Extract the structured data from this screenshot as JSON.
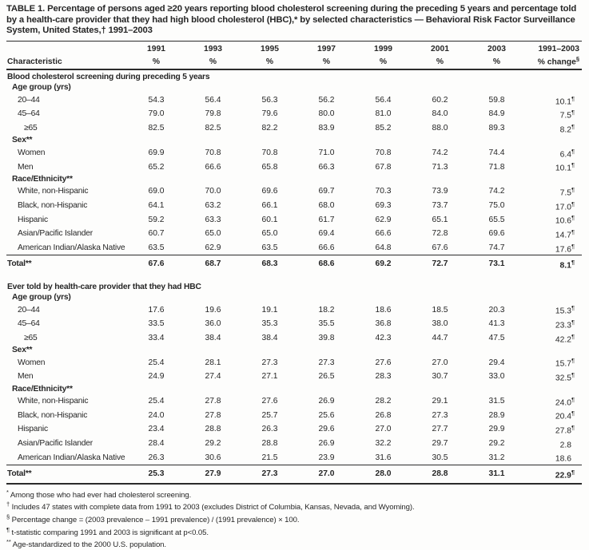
{
  "title": "TABLE 1. Percentage of persons aged ≥20 years reporting blood cholesterol screening during the preceding 5 years and percentage told by a health-care provider that they had high blood cholesterol (HBC),* by selected characteristics — Behavioral Risk Factor Surveillance System, United States,† 1991–2003",
  "header": {
    "characteristic_label": "Characteristic",
    "percent_label": "%",
    "year_columns": [
      "1991",
      "1993",
      "1995",
      "1997",
      "1999",
      "2001",
      "2003"
    ],
    "change_line1": "1991–2003",
    "change_line2": "% change",
    "change_marker": "§"
  },
  "table": {
    "sig_marker": "¶",
    "rows": [
      {
        "type": "section",
        "label": "Blood cholesterol screening during preceding 5 years"
      },
      {
        "type": "group",
        "label": "Age group (yrs)"
      },
      {
        "type": "data",
        "label": "20–44",
        "indent": 2,
        "values": [
          "54.3",
          "56.4",
          "56.3",
          "56.2",
          "56.4",
          "60.2",
          "59.8"
        ],
        "change": "10.1",
        "sig": true
      },
      {
        "type": "data",
        "label": "45–64",
        "indent": 2,
        "values": [
          "79.0",
          "79.8",
          "79.6",
          "80.0",
          "81.0",
          "84.0",
          "84.9"
        ],
        "change": "7.5",
        "sig": true
      },
      {
        "type": "data",
        "label": "≥65",
        "indent": 3,
        "values": [
          "82.5",
          "82.5",
          "82.2",
          "83.9",
          "85.2",
          "88.0",
          "89.3"
        ],
        "change": "8.2",
        "sig": true
      },
      {
        "type": "group",
        "label": "Sex**"
      },
      {
        "type": "data",
        "label": "Women",
        "indent": 2,
        "values": [
          "69.9",
          "70.8",
          "70.8",
          "71.0",
          "70.8",
          "74.2",
          "74.4"
        ],
        "change": "6.4",
        "sig": true
      },
      {
        "type": "data",
        "label": "Men",
        "indent": 2,
        "values": [
          "65.2",
          "66.6",
          "65.8",
          "66.3",
          "67.8",
          "71.3",
          "71.8"
        ],
        "change": "10.1",
        "sig": true
      },
      {
        "type": "group",
        "label": "Race/Ethnicity**"
      },
      {
        "type": "data",
        "label": "White, non-Hispanic",
        "indent": 2,
        "values": [
          "69.0",
          "70.0",
          "69.6",
          "69.7",
          "70.3",
          "73.9",
          "74.2"
        ],
        "change": "7.5",
        "sig": true
      },
      {
        "type": "data",
        "label": "Black, non-Hispanic",
        "indent": 2,
        "values": [
          "64.1",
          "63.2",
          "66.1",
          "68.0",
          "69.3",
          "73.7",
          "75.0"
        ],
        "change": "17.0",
        "sig": true
      },
      {
        "type": "data",
        "label": "Hispanic",
        "indent": 2,
        "values": [
          "59.2",
          "63.3",
          "60.1",
          "61.7",
          "62.9",
          "65.1",
          "65.5"
        ],
        "change": "10.6",
        "sig": true
      },
      {
        "type": "data",
        "label": "Asian/Pacific Islander",
        "indent": 2,
        "values": [
          "60.7",
          "65.0",
          "65.0",
          "69.4",
          "66.6",
          "72.8",
          "69.6"
        ],
        "change": "14.7",
        "sig": true
      },
      {
        "type": "data",
        "label": "American Indian/Alaska Native",
        "indent": 2,
        "values": [
          "63.5",
          "62.9",
          "63.5",
          "66.6",
          "64.8",
          "67.6",
          "74.7"
        ],
        "change": "17.6",
        "sig": true
      },
      {
        "type": "total",
        "label": "Total**",
        "indent": 0,
        "values": [
          "67.6",
          "68.7",
          "68.3",
          "68.6",
          "69.2",
          "72.7",
          "73.1"
        ],
        "change": "8.1",
        "sig": true
      },
      {
        "type": "section",
        "label": "Ever told by health-care provider that they had HBC"
      },
      {
        "type": "group",
        "label": "Age group (yrs)"
      },
      {
        "type": "data",
        "label": "20–44",
        "indent": 2,
        "values": [
          "17.6",
          "19.6",
          "19.1",
          "18.2",
          "18.6",
          "18.5",
          "20.3"
        ],
        "change": "15.3",
        "sig": true
      },
      {
        "type": "data",
        "label": "45–64",
        "indent": 2,
        "values": [
          "33.5",
          "36.0",
          "35.3",
          "35.5",
          "36.8",
          "38.0",
          "41.3"
        ],
        "change": "23.3",
        "sig": true
      },
      {
        "type": "data",
        "label": "≥65",
        "indent": 3,
        "values": [
          "33.4",
          "38.4",
          "38.4",
          "39.8",
          "42.3",
          "44.7",
          "47.5"
        ],
        "change": "42.2",
        "sig": true
      },
      {
        "type": "group",
        "label": "Sex**"
      },
      {
        "type": "data",
        "label": "Women",
        "indent": 2,
        "values": [
          "25.4",
          "28.1",
          "27.3",
          "27.3",
          "27.6",
          "27.0",
          "29.4"
        ],
        "change": "15.7",
        "sig": true
      },
      {
        "type": "data",
        "label": "Men",
        "indent": 2,
        "values": [
          "24.9",
          "27.4",
          "27.1",
          "26.5",
          "28.3",
          "30.7",
          "33.0"
        ],
        "change": "32.5",
        "sig": true
      },
      {
        "type": "group",
        "label": "Race/Ethnicity**"
      },
      {
        "type": "data",
        "label": "White, non-Hispanic",
        "indent": 2,
        "values": [
          "25.4",
          "27.8",
          "27.6",
          "26.9",
          "28.2",
          "29.1",
          "31.5"
        ],
        "change": "24.0",
        "sig": true
      },
      {
        "type": "data",
        "label": "Black, non-Hispanic",
        "indent": 2,
        "values": [
          "24.0",
          "27.8",
          "25.7",
          "25.6",
          "26.8",
          "27.3",
          "28.9"
        ],
        "change": "20.4",
        "sig": true
      },
      {
        "type": "data",
        "label": "Hispanic",
        "indent": 2,
        "values": [
          "23.4",
          "28.8",
          "26.3",
          "29.6",
          "27.0",
          "27.7",
          "29.9"
        ],
        "change": "27.8",
        "sig": true
      },
      {
        "type": "data",
        "label": "Asian/Pacific Islander",
        "indent": 2,
        "values": [
          "28.4",
          "29.2",
          "28.8",
          "26.9",
          "32.2",
          "29.7",
          "29.2"
        ],
        "change": "2.8",
        "sig": false
      },
      {
        "type": "data",
        "label": "American Indian/Alaska Native",
        "indent": 2,
        "values": [
          "26.3",
          "30.6",
          "21.5",
          "23.9",
          "31.6",
          "30.5",
          "31.2"
        ],
        "change": "18.6",
        "sig": false
      },
      {
        "type": "total",
        "label": "Total**",
        "indent": 0,
        "values": [
          "25.3",
          "27.9",
          "27.3",
          "27.0",
          "28.0",
          "28.8",
          "31.1"
        ],
        "change": "22.9",
        "sig": true
      }
    ]
  },
  "footnotes": [
    {
      "marker": "*",
      "text": "Among those who had ever had cholesterol screening."
    },
    {
      "marker": "†",
      "text": "Includes 47 states with complete data from 1991 to 2003 (excludes District of Columbia, Kansas, Nevada, and Wyoming)."
    },
    {
      "marker": "§",
      "text": "Percentage change = (2003 prevalence – 1991 prevalence) / (1991 prevalence) × 100."
    },
    {
      "marker": "¶",
      "text": "t-statistic comparing 1991 and 2003 is significant at p<0.05."
    },
    {
      "marker": "**",
      "text": "Age-standardized to the 2000 U.S. population."
    }
  ]
}
